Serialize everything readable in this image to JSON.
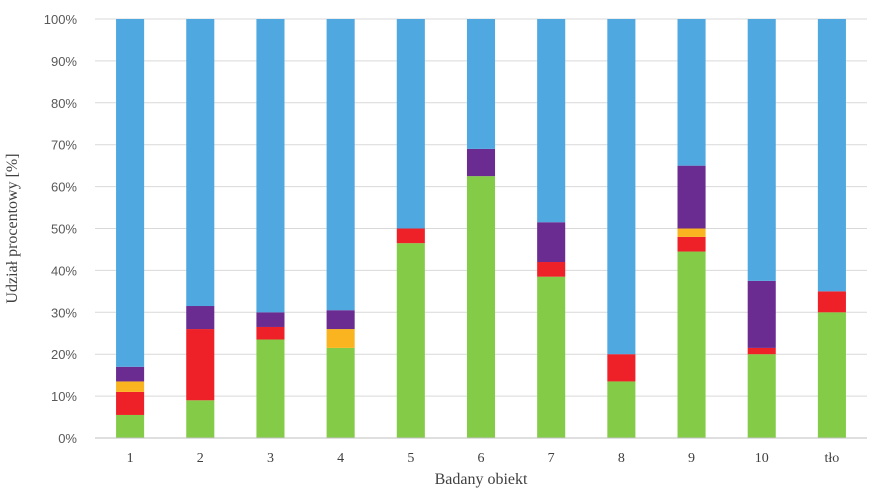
{
  "chart_data": {
    "type": "bar",
    "stacked": true,
    "percent_stacked": true,
    "xlabel": "Badany obiekt",
    "ylabel": "Udział procentowy [%]",
    "ylim": [
      0,
      100
    ],
    "yticks": [
      "0%",
      "10%",
      "20%",
      "30%",
      "40%",
      "50%",
      "60%",
      "70%",
      "80%",
      "90%",
      "100%"
    ],
    "grid": true,
    "legend": "none",
    "categories": [
      "1",
      "2",
      "3",
      "4",
      "5",
      "6",
      "7",
      "8",
      "9",
      "10",
      "tło"
    ],
    "series": [
      {
        "color": "#84cc48",
        "values": [
          5.5,
          9,
          23.5,
          21.5,
          46.5,
          62.5,
          38.5,
          13.5,
          44.5,
          20,
          30
        ]
      },
      {
        "color": "#ee2028",
        "values": [
          5.5,
          17,
          3,
          0,
          3.5,
          0,
          3.5,
          6.5,
          3.5,
          1.5,
          5
        ]
      },
      {
        "color": "#f9b41f",
        "values": [
          2.5,
          0,
          0,
          4.5,
          0,
          0,
          0,
          0,
          2,
          0,
          0
        ]
      },
      {
        "color": "#6a2c91",
        "values": [
          3.5,
          5.5,
          3.5,
          4.5,
          0,
          6.5,
          9.5,
          0,
          15,
          16,
          0
        ]
      },
      {
        "color": "#4fa8e0",
        "values": [
          83,
          68.5,
          70,
          69.5,
          50,
          31,
          48.5,
          80,
          35,
          62.5,
          65
        ]
      }
    ]
  }
}
